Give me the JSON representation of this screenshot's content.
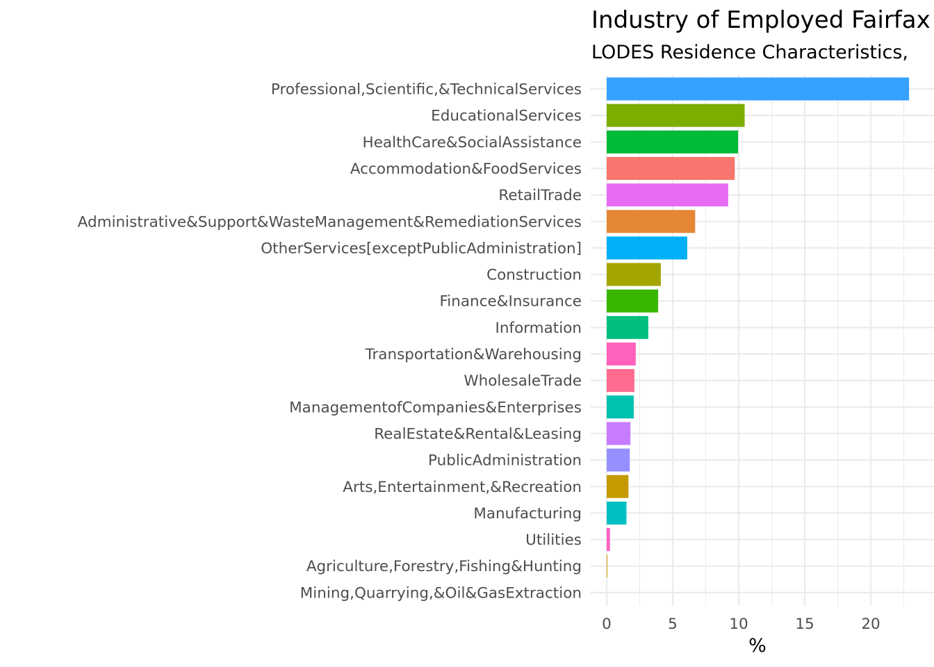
{
  "chart_data": {
    "type": "bar",
    "orientation": "horizontal",
    "title": "Industry of Employed Fairfax",
    "subtitle": "LODES Residence Characteristics,",
    "xlabel": "%",
    "ylabel": "",
    "xlim": [
      0,
      23.5
    ],
    "xticks": [
      0,
      5,
      10,
      15,
      20
    ],
    "grid": true,
    "legend": "none",
    "categories": [
      "Professional,Scientific,&TechnicalServices",
      "EducationalServices",
      "HealthCare&SocialAssistance",
      "Accommodation&FoodServices",
      "RetailTrade",
      "Administrative&Support&WasteManagement&RemediationServices",
      "OtherServices[exceptPublicAdministration]",
      "Construction",
      "Finance&Insurance",
      "Information",
      "Transportation&Warehousing",
      "WholesaleTrade",
      "ManagementofCompanies&Enterprises",
      "RealEstate&Rental&Leasing",
      "PublicAdministration",
      "Arts,Entertainment,&Recreation",
      "Manufacturing",
      "Utilities",
      "Agriculture,Forestry,Fishing&Hunting",
      "Mining,Quarrying,&Oil&GasExtraction"
    ],
    "values": [
      22.9,
      10.45,
      9.95,
      9.7,
      9.2,
      6.7,
      6.1,
      4.1,
      3.9,
      3.15,
      2.2,
      2.1,
      2.05,
      1.8,
      1.75,
      1.65,
      1.5,
      0.25,
      0.05,
      0
    ],
    "colors": [
      "#35A2FF",
      "#7CAE00",
      "#00BA38",
      "#F8766D",
      "#E76BF3",
      "#E58734",
      "#00B0F6",
      "#A3A500",
      "#39B600",
      "#00BF7D",
      "#FF62BC",
      "#FF6C90",
      "#00C0AF",
      "#C77CFF",
      "#9590FF",
      "#C49A00",
      "#00BFC4",
      "#FF61C3",
      "#D89000",
      "#DE8C00"
    ]
  }
}
